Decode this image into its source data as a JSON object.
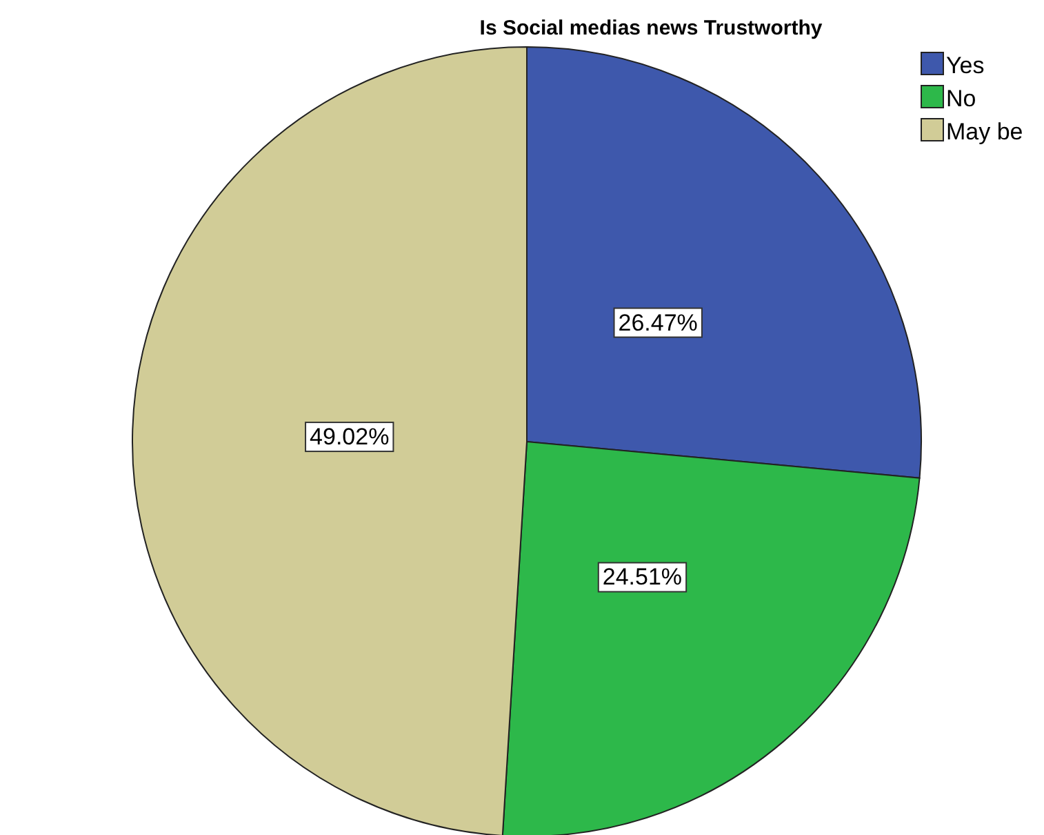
{
  "chart_data": {
    "type": "pie",
    "title": "Is Social medias news Trustworthy",
    "categories": [
      "Yes",
      "No",
      "May be"
    ],
    "values": [
      26.47,
      24.51,
      49.02
    ],
    "colors": [
      "#3e58ac",
      "#2db84a",
      "#d1cc97"
    ],
    "value_labels": [
      "26.47%",
      "24.51%",
      "49.02%"
    ],
    "legend": "top right"
  }
}
